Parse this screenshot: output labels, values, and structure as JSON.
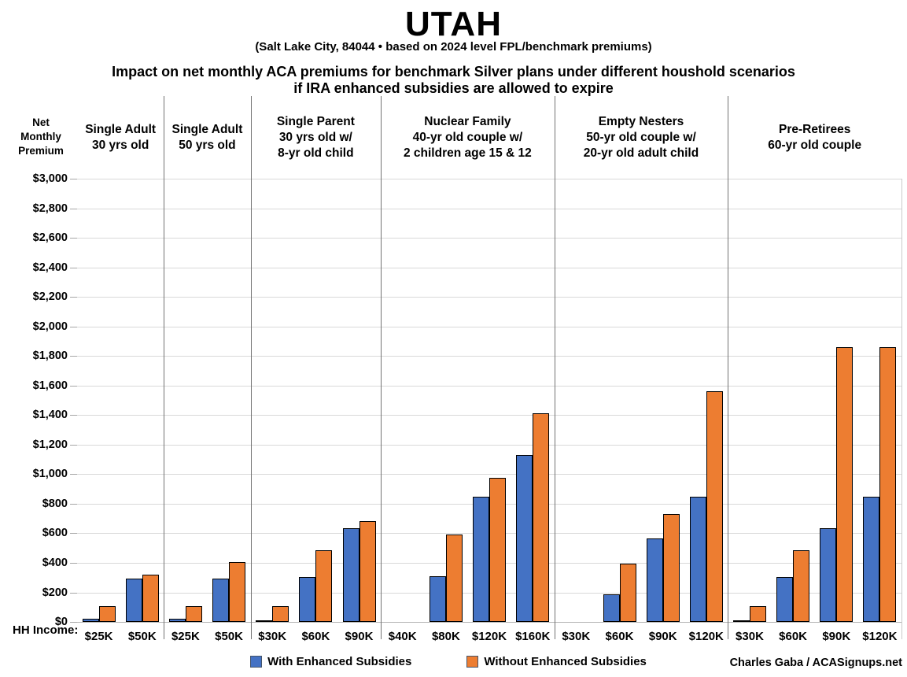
{
  "title": "UTAH",
  "subtitle": "(Salt Lake City, 84044 • based on 2024 level FPL/benchmark premiums)",
  "heading": {
    "line1": "Impact on net monthly ACA premiums for benchmark Silver plans under different houshold scenarios",
    "line2": "if IRA enhanced subsidies are allowed to expire"
  },
  "y_axis_title": [
    "Net",
    "Monthly",
    "Premium"
  ],
  "x_axis_title": "HH Income:",
  "credit": "Charles Gaba / ACASignups.net",
  "legend": [
    {
      "label": "With Enhanced Subsidies",
      "color": "#4472C4"
    },
    {
      "label": "Without Enhanced Subsidies",
      "color": "#ED7D31"
    }
  ],
  "chart_data": {
    "type": "bar",
    "ylabel": "Net Monthly Premium",
    "xlabel": "HH Income",
    "ylim": [
      0,
      3000
    ],
    "ytick_step": 200,
    "ytick_format": "$#,##0",
    "grid": true,
    "legend_position": "bottom",
    "series_names": [
      "With Enhanced Subsidies",
      "Without Enhanced Subsidies"
    ],
    "colors": {
      "with": "#4472C4",
      "without": "#ED7D31"
    },
    "groups": [
      {
        "label_lines": [
          "Single Adult",
          "30 yrs old"
        ],
        "categories": [
          "$25K",
          "$50K"
        ],
        "with": [
          20,
          295
        ],
        "without": [
          105,
          320
        ]
      },
      {
        "label_lines": [
          "Single Adult",
          "50 yrs old"
        ],
        "categories": [
          "$25K",
          "$50K"
        ],
        "with": [
          20,
          295
        ],
        "without": [
          105,
          405
        ]
      },
      {
        "label_lines": [
          "Single Parent",
          "30 yrs old w/",
          "8-yr old child"
        ],
        "categories": [
          "$30K",
          "$60K",
          "$90K"
        ],
        "with": [
          10,
          305,
          635
        ],
        "without": [
          105,
          485,
          680
        ]
      },
      {
        "label_lines": [
          "Nuclear Family",
          "40-yr old couple w/",
          "2 children age 15 & 12"
        ],
        "categories": [
          "$40K",
          "$80K",
          "$120K",
          "$160K"
        ],
        "with": [
          0,
          310,
          845,
          1130
        ],
        "without": [
          0,
          590,
          975,
          1410
        ]
      },
      {
        "label_lines": [
          "Empty Nesters",
          "50-yr old couple w/",
          "20-yr old adult child"
        ],
        "categories": [
          "$30K",
          "$60K",
          "$90K",
          "$120K"
        ],
        "with": [
          0,
          185,
          565,
          845
        ],
        "without": [
          0,
          395,
          730,
          1560
        ]
      },
      {
        "label_lines": [
          "Pre-Retirees",
          "60-yr old couple"
        ],
        "categories": [
          "$30K",
          "$60K",
          "$90K",
          "$120K"
        ],
        "with": [
          10,
          305,
          635,
          845
        ],
        "without": [
          105,
          485,
          1860,
          1860
        ]
      }
    ]
  }
}
